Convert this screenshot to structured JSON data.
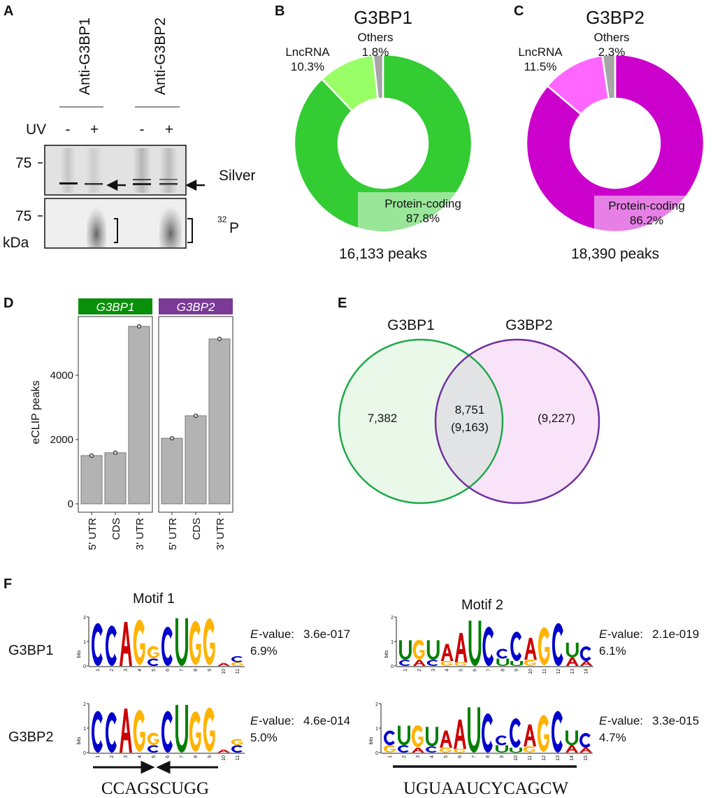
{
  "panel_labels": [
    "A",
    "B",
    "C",
    "D",
    "E",
    "F"
  ],
  "gel": {
    "lanes_groups": [
      "Anti-G3BP1",
      "Anti-G3BP2"
    ],
    "uv_label": "UV",
    "uv_states": [
      "-",
      "+",
      "-",
      "+"
    ],
    "marker_75": "75",
    "kda_label": "kDa",
    "silver_label": "Silver",
    "p32_sup": "32",
    "p32_label": "P"
  },
  "chart_data": [
    {
      "type": "pie",
      "style": "donut",
      "title": "G3BP1",
      "total_label": "16,133 peaks",
      "slices": [
        {
          "label": "Protein-coding",
          "pct_label": "87.8%",
          "value": 87.8,
          "color": "#33cc33"
        },
        {
          "label": "LncRNA",
          "pct_label": "10.3%",
          "value": 10.3,
          "color": "#99ff66"
        },
        {
          "label": "Others",
          "pct_label": "1.8%",
          "value": 1.8,
          "color": "#a6a6a6"
        }
      ]
    },
    {
      "type": "pie",
      "style": "donut",
      "title": "G3BP2",
      "total_label": "18,390 peaks",
      "slices": [
        {
          "label": "Protein-coding",
          "pct_label": "86.2%",
          "value": 86.2,
          "color": "#cc00cc"
        },
        {
          "label": "LncRNA",
          "pct_label": "11.5%",
          "value": 11.5,
          "color": "#ff66ff"
        },
        {
          "label": "Others",
          "pct_label": "2.3%",
          "value": 2.3,
          "color": "#a6a6a6"
        }
      ]
    },
    {
      "type": "bar",
      "ylabel": "eCLIP peaks",
      "xlabel": "",
      "ylim": [
        0,
        5800
      ],
      "yticks": [
        "0",
        "2000",
        "4000"
      ],
      "grid": false,
      "bar_color": "#b3b3b3",
      "categories": [
        "5' UTR",
        "CDS",
        "3' UTR"
      ],
      "facets": [
        {
          "name": "G3BP1",
          "color": "#0a8f0a",
          "values": [
            1500,
            1590,
            5520
          ]
        },
        {
          "name": "G3BP2",
          "color": "#7a3a96",
          "values": [
            2040,
            2740,
            5130
          ]
        }
      ]
    },
    {
      "type": "venn",
      "sets": [
        {
          "name": "G3BP1",
          "color": "#1fa84a",
          "fill": "#e9f8e9",
          "only": "7,382"
        },
        {
          "name": "G3BP2",
          "color": "#7030a0",
          "fill": "#f9e3f9",
          "only": "(9,227)"
        }
      ],
      "overlap": [
        "8,751",
        "(9,163)"
      ]
    }
  ],
  "motifs": {
    "row_labels": [
      "G3BP1",
      "G3BP2"
    ],
    "axis_label": "bits",
    "axis_ticks": [
      "0",
      "1",
      "2"
    ],
    "letter_colors": {
      "A": "#cc0000",
      "C": "#0000cc",
      "G": "#ffb300",
      "U": "#008000"
    },
    "evalue_prefix": "E",
    "evalue_suffix": "-value:",
    "blocks": [
      {
        "title": "Motif 1",
        "consensus": "CCAGSCUGG",
        "logos": [
          {
            "evalue": "3.6e-017",
            "pct": "6.9%",
            "positions": [
              [
                [
                  "C",
                  1.75
                ]
              ],
              [
                [
                  "C",
                  1.65
                ]
              ],
              [
                [
                  "A",
                  1.8
                ]
              ],
              [
                [
                  "G",
                  1.85
                ]
              ],
              [
                [
                  "G",
                  0.5
                ],
                [
                  "C",
                  0.3
                ]
              ],
              [
                [
                  "C",
                  1.6
                ]
              ],
              [
                [
                  "U",
                  1.95
                ]
              ],
              [
                [
                  "G",
                  1.8
                ]
              ],
              [
                [
                  "G",
                  1.9
                ]
              ],
              [
                [
                  "A",
                  0.12
                ]
              ],
              [
                [
                  "C",
                  0.25
                ],
                [
                  "G",
                  0.15
                ]
              ]
            ]
          },
          {
            "evalue": "4.6e-014",
            "pct": "5.0%",
            "positions": [
              [
                [
                  "C",
                  1.7
                ]
              ],
              [
                [
                  "C",
                  1.65
                ]
              ],
              [
                [
                  "A",
                  1.8
                ]
              ],
              [
                [
                  "G",
                  1.7
                ]
              ],
              [
                [
                  "G",
                  0.5
                ],
                [
                  "C",
                  0.3
                ]
              ],
              [
                [
                  "C",
                  1.7
                ]
              ],
              [
                [
                  "U",
                  1.95
                ]
              ],
              [
                [
                  "G",
                  1.65
                ]
              ],
              [
                [
                  "G",
                  1.8
                ]
              ],
              [
                [
                  "A",
                  0.12
                ]
              ],
              [
                [
                  "G",
                  0.25
                ],
                [
                  "C",
                  0.3
                ]
              ]
            ]
          }
        ]
      },
      {
        "title": "Motif 2",
        "consensus": "UGUAAUCYCAGCW",
        "logos": [
          {
            "evalue": "2.1e-019",
            "pct": "6.1%",
            "positions": [
              [
                [
                  "U",
                  0.8
                ],
                [
                  "C",
                  0.25
                ]
              ],
              [
                [
                  "G",
                  0.8
                ],
                [
                  "A",
                  0.25
                ]
              ],
              [
                [
                  "U",
                  0.8
                ],
                [
                  "C",
                  0.25
                ]
              ],
              [
                [
                  "A",
                  0.7
                ],
                [
                  "G",
                  0.2
                ]
              ],
              [
                [
                  "A",
                  1.2
                ],
                [
                  "G",
                  0.15
                ]
              ],
              [
                [
                  "U",
                  1.85
                ]
              ],
              [
                [
                  "C",
                  1.6
                ]
              ],
              [
                [
                  "C",
                  0.4
                ],
                [
                  "U",
                  0.3
                ]
              ],
              [
                [
                  "C",
                  1.2
                ],
                [
                  "U",
                  0.2
                ]
              ],
              [
                [
                  "A",
                  0.9
                ],
                [
                  "G",
                  0.25
                ]
              ],
              [
                [
                  "G",
                  1.55
                ]
              ],
              [
                [
                  "C",
                  1.75
                ]
              ],
              [
                [
                  "U",
                  0.6
                ],
                [
                  "A",
                  0.35
                ]
              ],
              [
                [
                  "C",
                  0.6
                ],
                [
                  "A",
                  0.2
                ]
              ]
            ]
          },
          {
            "evalue": "3.3e-015",
            "pct": "4.7%",
            "positions": [
              [
                [
                  "C",
                  0.6
                ],
                [
                  "G",
                  0.3
                ]
              ],
              [
                [
                  "U",
                  0.8
                ],
                [
                  "C",
                  0.3
                ]
              ],
              [
                [
                  "G",
                  0.9
                ],
                [
                  "A",
                  0.2
                ]
              ],
              [
                [
                  "U",
                  0.8
                ],
                [
                  "C",
                  0.25
                ]
              ],
              [
                [
                  "A",
                  0.7
                ],
                [
                  "G",
                  0.2
                ]
              ],
              [
                [
                  "A",
                  1.2
                ],
                [
                  "G",
                  0.15
                ]
              ],
              [
                [
                  "U",
                  1.85
                ]
              ],
              [
                [
                  "C",
                  1.6
                ]
              ],
              [
                [
                  "C",
                  0.4
                ],
                [
                  "U",
                  0.3
                ]
              ],
              [
                [
                  "C",
                  1.2
                ],
                [
                  "U",
                  0.2
                ]
              ],
              [
                [
                  "A",
                  0.9
                ],
                [
                  "G",
                  0.25
                ]
              ],
              [
                [
                  "G",
                  1.5
                ]
              ],
              [
                [
                  "C",
                  1.7
                ]
              ],
              [
                [
                  "U",
                  0.6
                ],
                [
                  "A",
                  0.3
                ]
              ],
              [
                [
                  "C",
                  0.6
                ],
                [
                  "A",
                  0.2
                ]
              ]
            ]
          }
        ]
      }
    ]
  }
}
